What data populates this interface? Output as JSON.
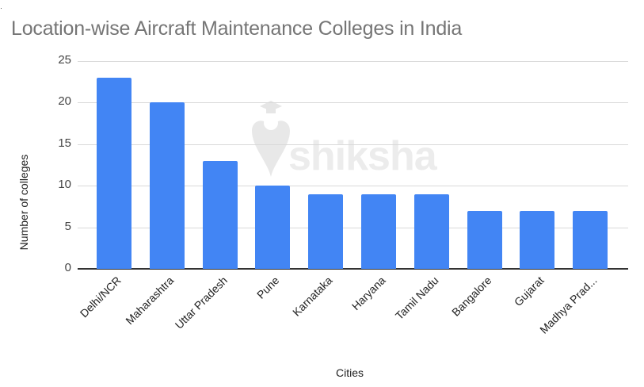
{
  "chart_data": {
    "type": "bar",
    "title": "Location-wise Aircraft Maintenance Colleges in India",
    "xlabel": "Cities",
    "ylabel": "Number of colleges",
    "categories": [
      "Delhi/NCR",
      "Maharashtra",
      "Uttar Pradesh",
      "Pune",
      "Karnataka",
      "Haryana",
      "Tamil Nadu",
      "Bangalore",
      "Gujarat",
      "Madhya Prad..."
    ],
    "values": [
      23,
      20,
      13,
      10,
      9,
      9,
      9,
      7,
      7,
      7
    ],
    "ylim": [
      0,
      25
    ],
    "yticks": [
      "0",
      "5",
      "10",
      "15",
      "20",
      "25"
    ],
    "grid": true,
    "legend": "none",
    "bar_color": "#4285f4"
  },
  "watermark": {
    "text": "shiksha"
  }
}
